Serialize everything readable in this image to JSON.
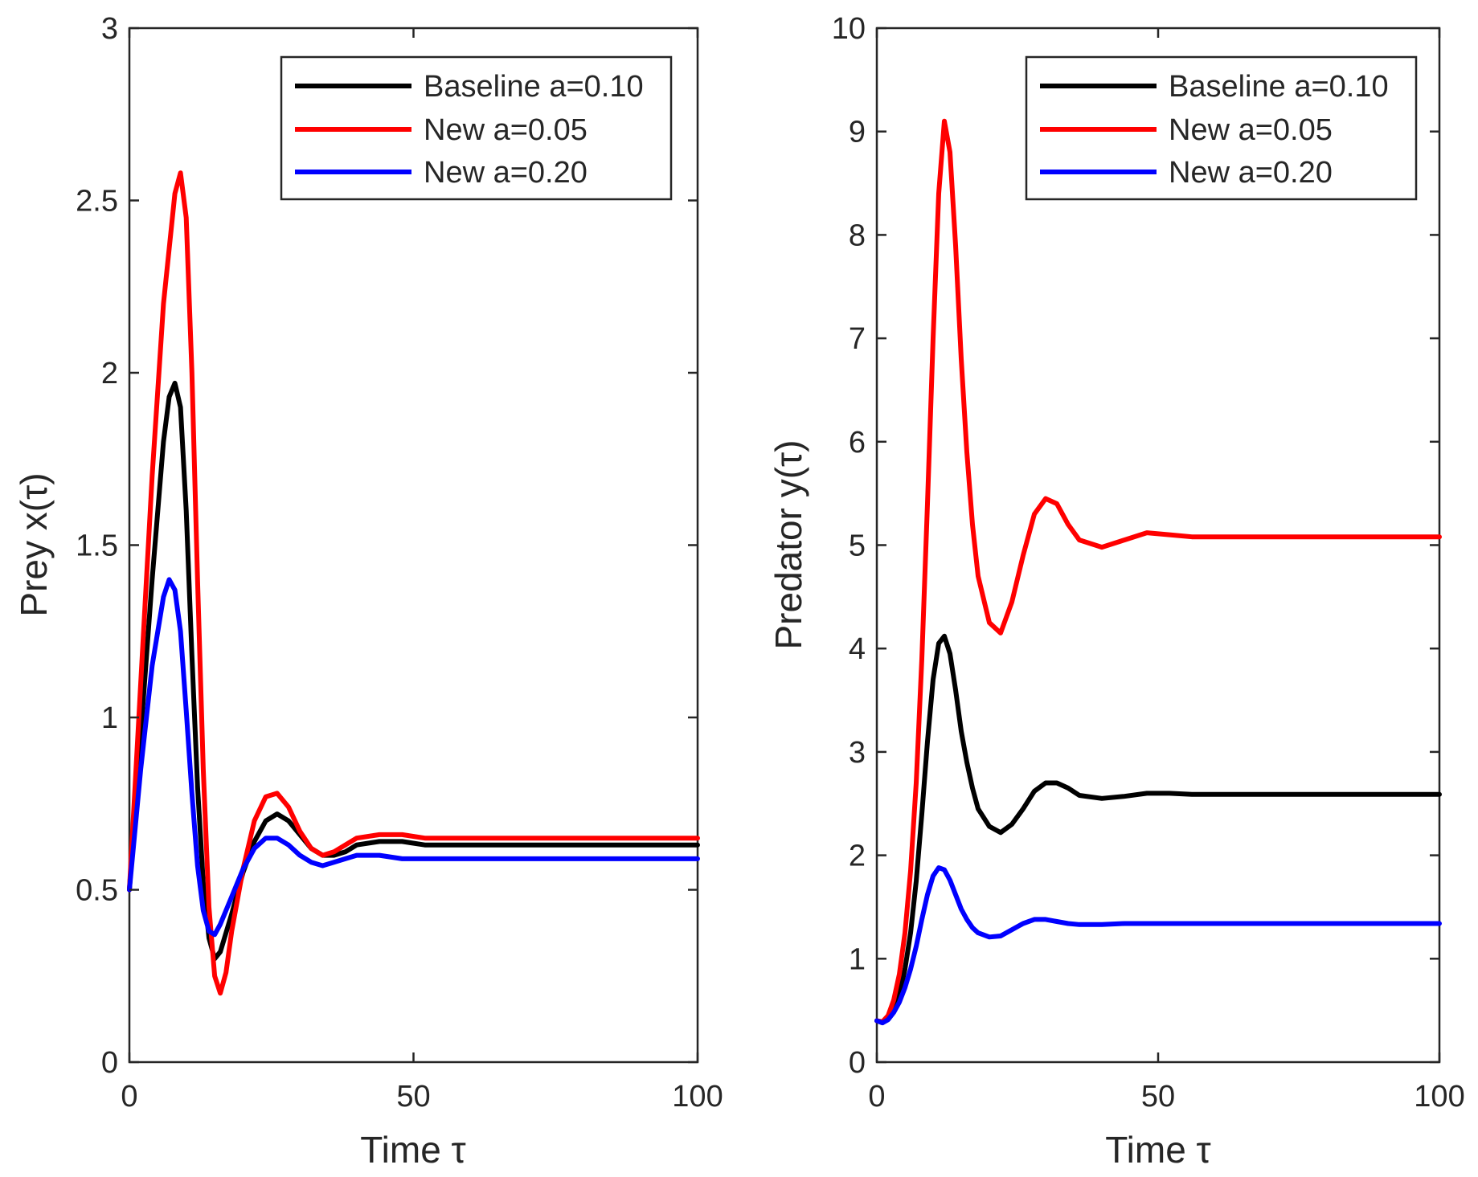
{
  "chart_data": [
    {
      "type": "line",
      "xlabel": "Time τ",
      "ylabel": "Prey x(τ)",
      "xlim": [
        0,
        100
      ],
      "ylim": [
        0,
        3
      ],
      "xticks": [
        0,
        50,
        100
      ],
      "xtick_labels": [
        "0",
        "50",
        "100"
      ],
      "yticks": [
        0,
        0.5,
        1,
        1.5,
        2,
        2.5,
        3
      ],
      "ytick_labels": [
        "0",
        "0.5",
        "1",
        "1.5",
        "2",
        "2.5",
        "3"
      ],
      "grid": false,
      "legend_position": "top-right",
      "series": [
        {
          "name": "Baseline a=0.10",
          "color": "#000000",
          "x": [
            0,
            2,
            4,
            6,
            7,
            8,
            9,
            10,
            11,
            12,
            13,
            14,
            15,
            16,
            18,
            20,
            22,
            24,
            26,
            28,
            30,
            32,
            34,
            36,
            38,
            40,
            44,
            48,
            52,
            56,
            60,
            70,
            80,
            90,
            100
          ],
          "y": [
            0.5,
            0.95,
            1.4,
            1.8,
            1.93,
            1.97,
            1.9,
            1.6,
            1.18,
            0.8,
            0.52,
            0.36,
            0.3,
            0.32,
            0.43,
            0.55,
            0.64,
            0.7,
            0.72,
            0.7,
            0.66,
            0.62,
            0.6,
            0.6,
            0.61,
            0.63,
            0.64,
            0.64,
            0.63,
            0.63,
            0.63,
            0.63,
            0.63,
            0.63,
            0.63
          ]
        },
        {
          "name": "New a=0.05",
          "color": "#ff0000",
          "x": [
            0,
            2,
            4,
            6,
            8,
            9,
            10,
            11,
            12,
            13,
            14,
            15,
            16,
            17,
            18,
            20,
            22,
            24,
            26,
            28,
            30,
            32,
            34,
            36,
            38,
            40,
            44,
            48,
            52,
            56,
            60,
            70,
            80,
            90,
            100
          ],
          "y": [
            0.5,
            1.1,
            1.7,
            2.2,
            2.52,
            2.58,
            2.45,
            2.0,
            1.4,
            0.85,
            0.45,
            0.25,
            0.2,
            0.26,
            0.38,
            0.56,
            0.7,
            0.77,
            0.78,
            0.74,
            0.67,
            0.62,
            0.6,
            0.61,
            0.63,
            0.65,
            0.66,
            0.66,
            0.65,
            0.65,
            0.65,
            0.65,
            0.65,
            0.65,
            0.65
          ]
        },
        {
          "name": "New a=0.20",
          "color": "#0000ff",
          "x": [
            0,
            2,
            4,
            6,
            7,
            8,
            9,
            10,
            11,
            12,
            13,
            14,
            15,
            16,
            18,
            20,
            22,
            24,
            26,
            28,
            30,
            32,
            34,
            36,
            38,
            40,
            44,
            48,
            52,
            56,
            60,
            70,
            80,
            90,
            100
          ],
          "y": [
            0.5,
            0.85,
            1.15,
            1.35,
            1.4,
            1.37,
            1.25,
            1.02,
            0.78,
            0.57,
            0.44,
            0.38,
            0.37,
            0.4,
            0.48,
            0.56,
            0.62,
            0.65,
            0.65,
            0.63,
            0.6,
            0.58,
            0.57,
            0.58,
            0.59,
            0.6,
            0.6,
            0.59,
            0.59,
            0.59,
            0.59,
            0.59,
            0.59,
            0.59,
            0.59
          ]
        }
      ]
    },
    {
      "type": "line",
      "xlabel": "Time τ",
      "ylabel": "Predator y(τ)",
      "xlim": [
        0,
        100
      ],
      "ylim": [
        0,
        10
      ],
      "xticks": [
        0,
        50,
        100
      ],
      "xtick_labels": [
        "0",
        "50",
        "100"
      ],
      "yticks": [
        0,
        1,
        2,
        3,
        4,
        5,
        6,
        7,
        8,
        9,
        10
      ],
      "ytick_labels": [
        "0",
        "1",
        "2",
        "3",
        "4",
        "5",
        "6",
        "7",
        "8",
        "9",
        "10"
      ],
      "grid": false,
      "legend_position": "top-right",
      "series": [
        {
          "name": "Baseline a=0.10",
          "color": "#000000",
          "x": [
            0,
            1,
            2,
            3,
            4,
            5,
            6,
            7,
            8,
            9,
            10,
            11,
            12,
            13,
            14,
            15,
            16,
            17,
            18,
            20,
            22,
            24,
            26,
            28,
            30,
            32,
            34,
            36,
            40,
            44,
            48,
            52,
            56,
            60,
            70,
            80,
            90,
            100
          ],
          "y": [
            0.4,
            0.38,
            0.42,
            0.5,
            0.65,
            0.9,
            1.25,
            1.75,
            2.4,
            3.1,
            3.7,
            4.05,
            4.12,
            3.95,
            3.6,
            3.2,
            2.9,
            2.65,
            2.45,
            2.28,
            2.22,
            2.3,
            2.45,
            2.62,
            2.7,
            2.7,
            2.65,
            2.58,
            2.55,
            2.57,
            2.6,
            2.6,
            2.59,
            2.59,
            2.59,
            2.59,
            2.59,
            2.59
          ]
        },
        {
          "name": "New a=0.05",
          "color": "#ff0000",
          "x": [
            0,
            1,
            2,
            3,
            4,
            5,
            6,
            7,
            8,
            9,
            10,
            11,
            12,
            13,
            14,
            15,
            16,
            17,
            18,
            20,
            22,
            24,
            26,
            28,
            30,
            32,
            34,
            36,
            40,
            44,
            48,
            52,
            56,
            60,
            70,
            80,
            90,
            100
          ],
          "y": [
            0.4,
            0.39,
            0.45,
            0.6,
            0.85,
            1.25,
            1.85,
            2.7,
            3.9,
            5.4,
            7.0,
            8.4,
            9.1,
            8.8,
            7.9,
            6.8,
            5.9,
            5.2,
            4.7,
            4.25,
            4.15,
            4.45,
            4.9,
            5.3,
            5.45,
            5.4,
            5.2,
            5.05,
            4.98,
            5.05,
            5.12,
            5.1,
            5.08,
            5.08,
            5.08,
            5.08,
            5.08,
            5.08
          ]
        },
        {
          "name": "New a=0.20",
          "color": "#0000ff",
          "x": [
            0,
            1,
            2,
            3,
            4,
            5,
            6,
            7,
            8,
            9,
            10,
            11,
            12,
            13,
            14,
            15,
            16,
            17,
            18,
            20,
            22,
            24,
            26,
            28,
            30,
            32,
            34,
            36,
            40,
            44,
            48,
            52,
            56,
            60,
            70,
            80,
            90,
            100
          ],
          "y": [
            0.4,
            0.38,
            0.41,
            0.48,
            0.58,
            0.72,
            0.9,
            1.12,
            1.38,
            1.62,
            1.8,
            1.88,
            1.86,
            1.76,
            1.62,
            1.48,
            1.38,
            1.3,
            1.25,
            1.21,
            1.22,
            1.28,
            1.34,
            1.38,
            1.38,
            1.36,
            1.34,
            1.33,
            1.33,
            1.34,
            1.34,
            1.34,
            1.34,
            1.34,
            1.34,
            1.34,
            1.34,
            1.34
          ]
        }
      ]
    }
  ]
}
